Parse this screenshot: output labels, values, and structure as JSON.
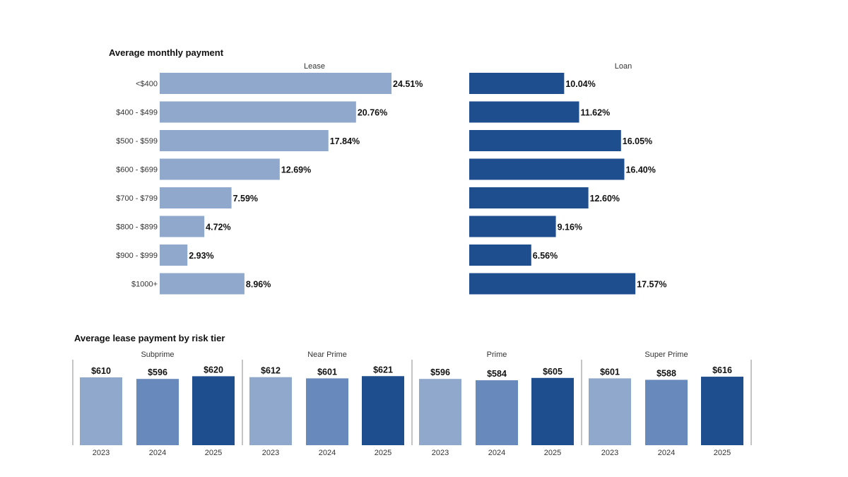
{
  "chart_data": [
    {
      "type": "bar",
      "orientation": "horizontal",
      "title": "Average monthly payment",
      "categories": [
        "<$400",
        "$400 - $499",
        "$500 - $599",
        "$600 - $699",
        "$700 - $799",
        "$800 - $899",
        "$900 - $999",
        "$1000+"
      ],
      "series": [
        {
          "name": "Lease",
          "color": "#8fa8cc",
          "values": [
            24.51,
            20.76,
            17.84,
            12.69,
            7.59,
            4.72,
            2.93,
            8.96
          ],
          "labels": [
            "24.51%",
            "20.76%",
            "17.84%",
            "12.69%",
            "7.59%",
            "4.72%",
            "2.93%",
            "8.96%"
          ]
        },
        {
          "name": "Loan",
          "color": "#1f4e8f",
          "values": [
            10.04,
            11.62,
            16.05,
            16.4,
            12.6,
            9.16,
            6.56,
            17.57
          ],
          "labels": [
            "10.04%",
            "11.62%",
            "16.05%",
            "16.40%",
            "12.60%",
            "9.16%",
            "6.56%",
            "17.57%"
          ]
        }
      ],
      "xlim": [
        0,
        30
      ],
      "grid": false,
      "legend": "none"
    },
    {
      "type": "bar",
      "title": "Average lease payment by risk tier",
      "groups": [
        "Subprime",
        "Near Prime",
        "Prime",
        "Super Prime"
      ],
      "categories": [
        "2023",
        "2024",
        "2025"
      ],
      "category_colors": [
        "#8fa8cc",
        "#6789bb",
        "#1f4e8f"
      ],
      "values": [
        [
          610,
          596,
          620
        ],
        [
          612,
          601,
          621
        ],
        [
          596,
          584,
          605
        ],
        [
          601,
          588,
          616
        ]
      ],
      "labels": [
        [
          "$610",
          "$596",
          "$620"
        ],
        [
          "$612",
          "$601",
          "$621"
        ],
        [
          "$596",
          "$584",
          "$605"
        ],
        [
          "$601",
          "$588",
          "$616"
        ]
      ],
      "ylim": [
        0,
        650
      ],
      "grid": false,
      "legend": "none"
    }
  ]
}
